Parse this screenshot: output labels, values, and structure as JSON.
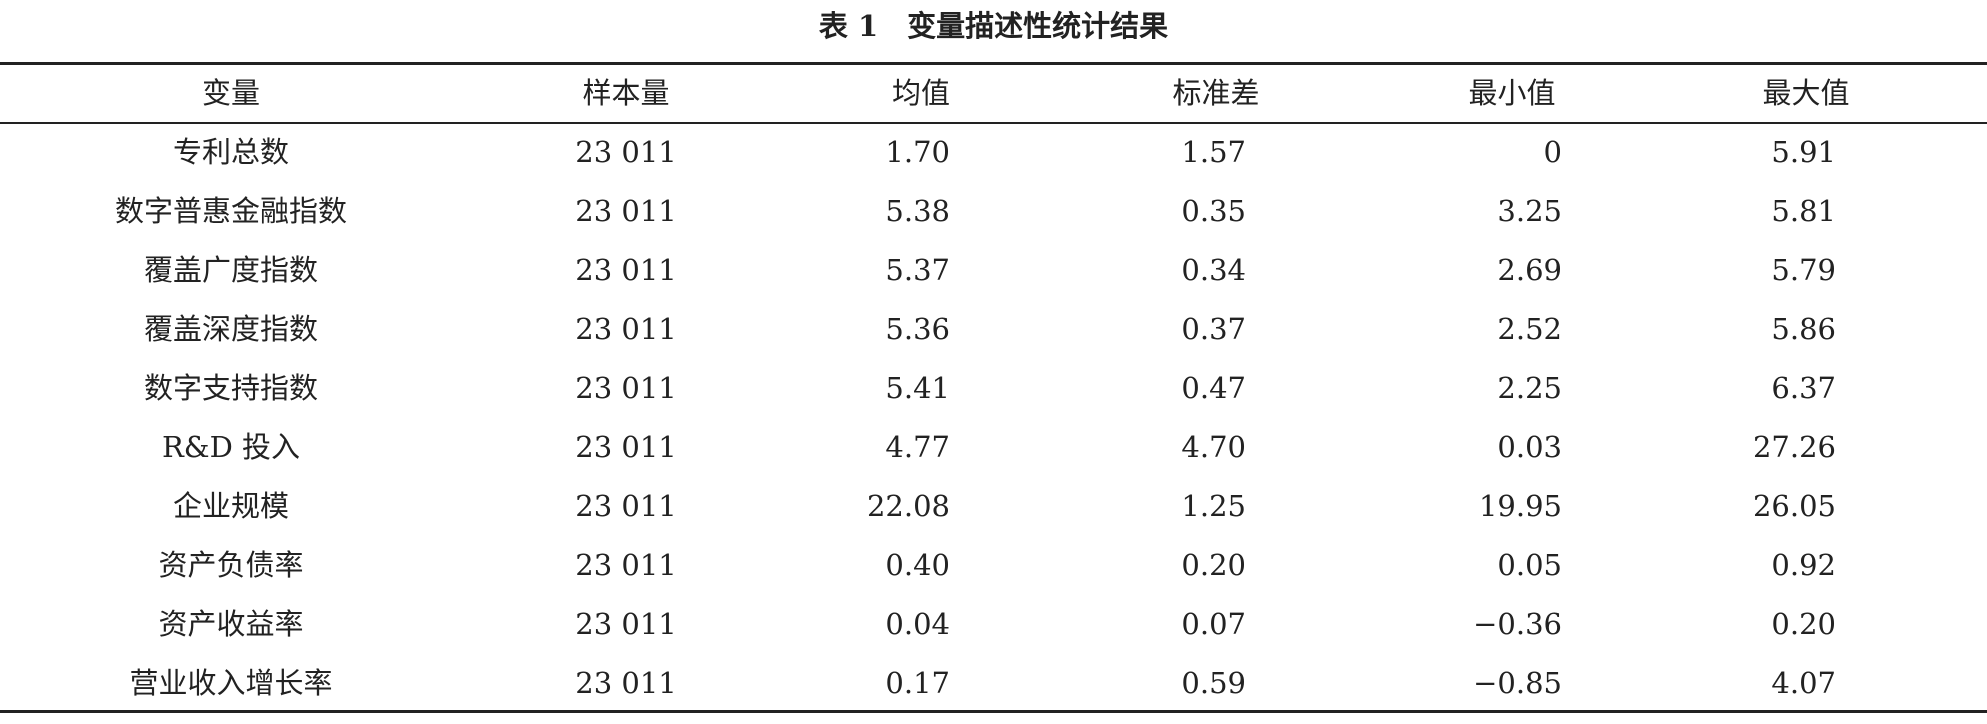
{
  "title": "表 1　变量描述性统计结果",
  "table": {
    "header": [
      "变量",
      "样本量",
      "均值",
      "标准差",
      "最小值",
      "最大值"
    ],
    "rows": [
      [
        "专利总数",
        "23 011",
        "1.70",
        "1.57",
        "0",
        "5.91"
      ],
      [
        "数字普惠金融指数",
        "23 011",
        "5.38",
        "0.35",
        "3.25",
        "5.81"
      ],
      [
        "覆盖广度指数",
        "23 011",
        "5.37",
        "0.34",
        "2.69",
        "5.79"
      ],
      [
        "覆盖深度指数",
        "23 011",
        "5.36",
        "0.37",
        "2.52",
        "5.86"
      ],
      [
        "数字支持指数",
        "23 011",
        "5.41",
        "0.47",
        "2.25",
        "6.37"
      ],
      [
        "R&D 投入",
        "23 011",
        "4.77",
        "4.70",
        "0.03",
        "27.26"
      ],
      [
        "企业规模",
        "23 011",
        "22.08",
        "1.25",
        "19.95",
        "26.05"
      ],
      [
        "资产负债率",
        "23 011",
        "0.40",
        "0.20",
        "0.05",
        "0.92"
      ],
      [
        "资产收益率",
        "23 011",
        "0.04",
        "0.07",
        "−0.36",
        "0.20"
      ],
      [
        "营业收入增长率",
        "23 011",
        "0.17",
        "0.59",
        "−0.85",
        "4.07"
      ]
    ]
  }
}
